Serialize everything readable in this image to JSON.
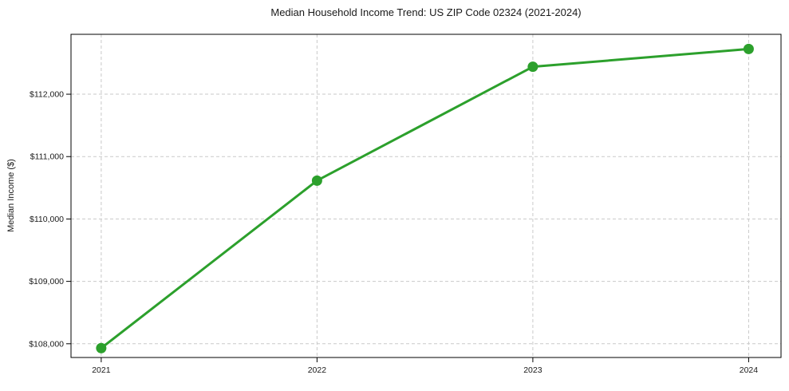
{
  "chart_data": {
    "type": "line",
    "title": "Median Household Income Trend: US ZIP Code 02324 (2021-2024)",
    "xlabel": "",
    "ylabel": "Median Income ($)",
    "x": [
      2021,
      2022,
      2023,
      2024
    ],
    "series": [
      {
        "name": "Median Household Income",
        "values": [
          107930,
          110615,
          112440,
          112725
        ]
      }
    ],
    "xticks": [
      {
        "value": 2021,
        "label": "2021"
      },
      {
        "value": 2022,
        "label": "2022"
      },
      {
        "value": 2023,
        "label": "2023"
      },
      {
        "value": 2024,
        "label": "2024"
      }
    ],
    "yticks": [
      {
        "value": 108000,
        "label": "$108,000"
      },
      {
        "value": 109000,
        "label": "$109,000"
      },
      {
        "value": 110000,
        "label": "$110,000"
      },
      {
        "value": 111000,
        "label": "$111,000"
      },
      {
        "value": 112000,
        "label": "$112,000"
      }
    ],
    "xlim": [
      2020.86,
      2024.15
    ],
    "ylim": [
      107780,
      112960
    ],
    "grid": true,
    "grid_style": "dashed",
    "legend": "none",
    "marker": "circle",
    "colors": {
      "line": "#2ca02c",
      "marker": "#2ca02c",
      "grid": "#c9c9c9",
      "axis": "#000000",
      "text": "#1a1a1a",
      "background": "#ffffff"
    }
  }
}
